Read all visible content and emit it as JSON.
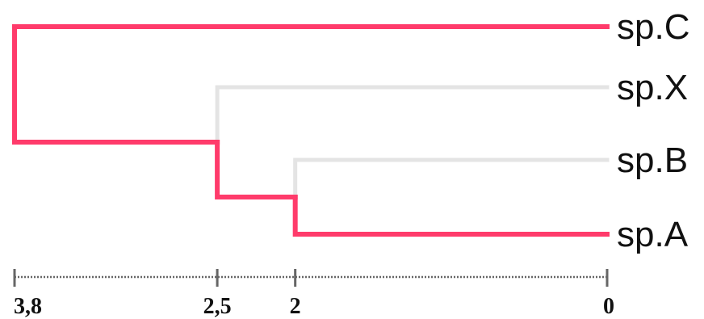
{
  "tree": {
    "leaves": [
      {
        "id": "C",
        "label": "sp.C"
      },
      {
        "id": "X",
        "label": "sp.X"
      },
      {
        "id": "B",
        "label": "sp.B"
      },
      {
        "id": "A",
        "label": "sp.A"
      }
    ],
    "nodes": [
      {
        "id": "n_AB",
        "height": 2,
        "children": [
          "B",
          "A"
        ]
      },
      {
        "id": "n_ABX",
        "height": 2.5,
        "children": [
          "X",
          "n_AB"
        ]
      },
      {
        "id": "root",
        "height": 3.8,
        "children": [
          "C",
          "n_ABX"
        ]
      }
    ],
    "highlighted_path": [
      "root",
      "C",
      "n_ABX",
      "n_AB",
      "A"
    ]
  },
  "scale": {
    "ticks": [
      {
        "value": 3.8,
        "label": "3,8"
      },
      {
        "value": 2.5,
        "label": "2,5"
      },
      {
        "value": 2,
        "label": "2"
      },
      {
        "value": 0,
        "label": "0"
      }
    ]
  },
  "colors": {
    "highlight": "#ff3b6b",
    "branch": "#e4e4e4",
    "axis": "#666666",
    "text": "#111111"
  }
}
